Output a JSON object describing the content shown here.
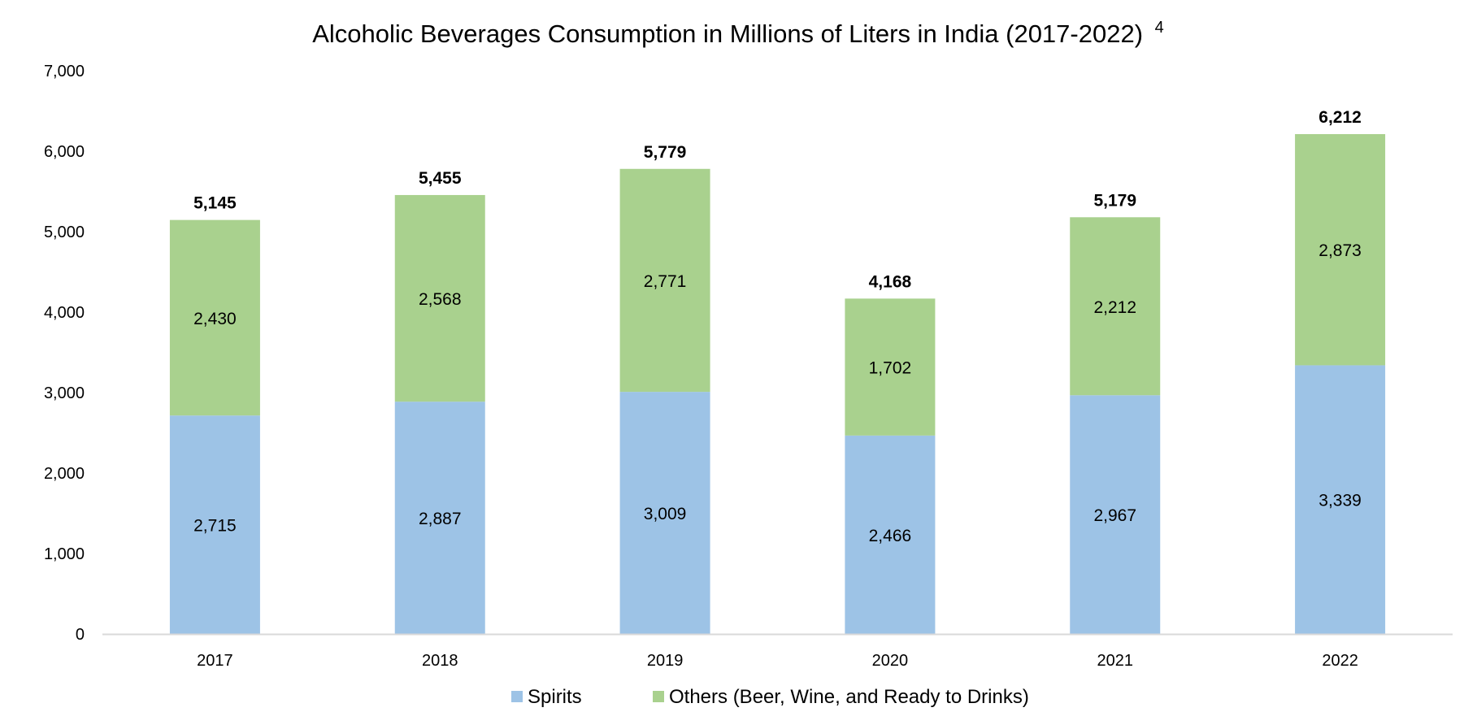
{
  "chart_data": {
    "type": "bar",
    "stacked": true,
    "title": "Alcoholic Beverages Consumption in Millions of Liters in India (2017-2022)",
    "title_superscript": "4",
    "xlabel": "",
    "ylabel": "",
    "categories": [
      "2017",
      "2018",
      "2019",
      "2020",
      "2021",
      "2022"
    ],
    "series": [
      {
        "name": "Spirits",
        "color": "#9DC3E6",
        "values": [
          2715,
          2887,
          3009,
          2466,
          2967,
          3339
        ]
      },
      {
        "name": "Others (Beer, Wine, and Ready to Drinks)",
        "color": "#A9D18E",
        "values": [
          2430,
          2568,
          2771,
          1702,
          2212,
          2873
        ]
      }
    ],
    "totals": [
      5145,
      5455,
      5779,
      4168,
      5179,
      6212
    ],
    "ylim": [
      0,
      7000
    ],
    "yticks": [
      0,
      1000,
      2000,
      3000,
      4000,
      5000,
      6000,
      7000
    ],
    "ytick_labels": [
      "0",
      "1,000",
      "2,000",
      "3,000",
      "4,000",
      "5,000",
      "6,000",
      "7,000"
    ],
    "grid": false,
    "legend_position": "bottom",
    "axis_color": "#D9D9D9"
  }
}
